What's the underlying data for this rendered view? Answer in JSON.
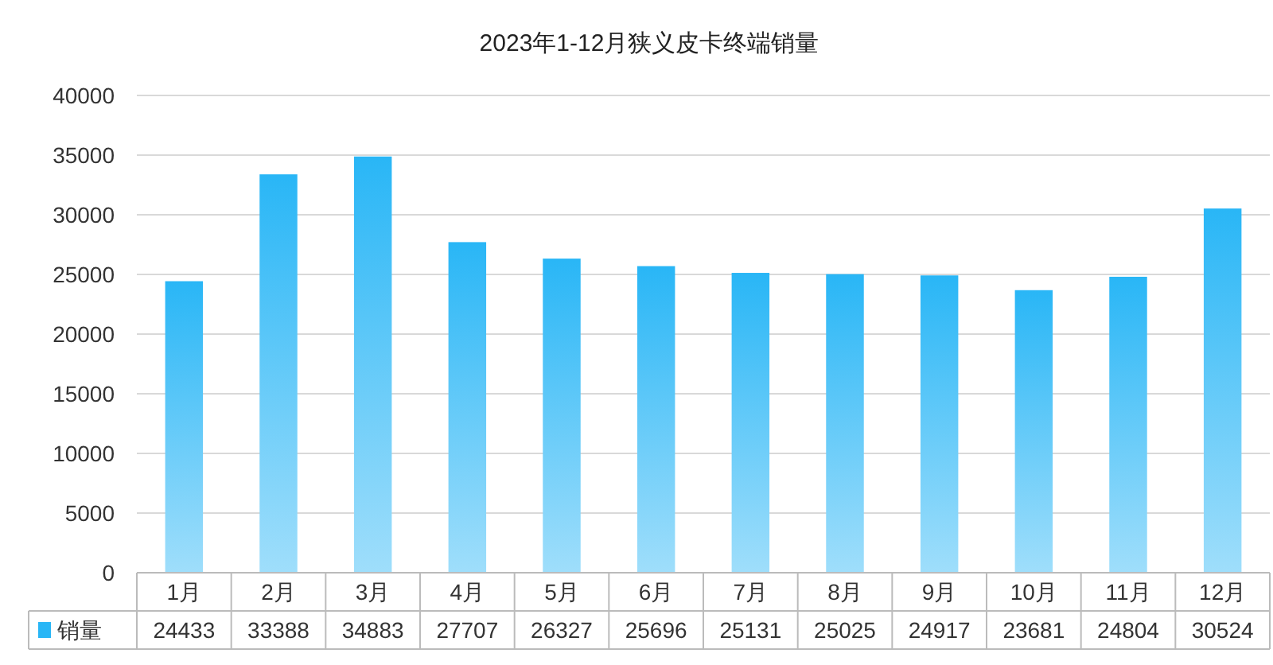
{
  "chart_data": {
    "type": "bar",
    "title": "2023年1-12月狭义皮卡终端销量",
    "categories": [
      "1月",
      "2月",
      "3月",
      "4月",
      "5月",
      "6月",
      "7月",
      "8月",
      "9月",
      "10月",
      "11月",
      "12月"
    ],
    "series": [
      {
        "name": "销量",
        "color": "#29b6f6",
        "values": [
          24433,
          33388,
          34883,
          27707,
          26327,
          25696,
          25131,
          25025,
          24917,
          23681,
          24804,
          30524
        ]
      }
    ],
    "ylim": [
      0,
      40000
    ],
    "yticks": [
      0,
      5000,
      10000,
      15000,
      20000,
      25000,
      30000,
      35000,
      40000
    ],
    "grid": "y",
    "legend": "bottom left",
    "data_labels": true
  }
}
